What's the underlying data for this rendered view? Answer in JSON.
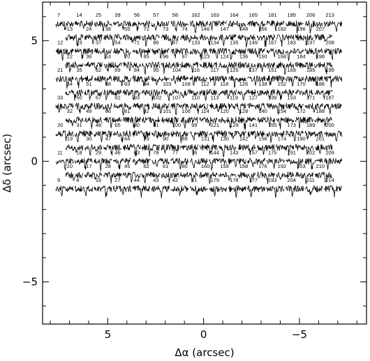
{
  "chart_data": {
    "type": "line",
    "title": "",
    "xlabel": "Δα (arcsec)",
    "ylabel": "Δδ (arcsec)",
    "xlim": [
      8.4,
      -8.5
    ],
    "ylim": [
      -6.75,
      6.6
    ],
    "x_axis_reversed": true,
    "x_ticks": [
      5,
      0,
      -5
    ],
    "x_tick_labels": [
      "5",
      "0",
      "−5"
    ],
    "y_ticks": [
      5,
      0,
      -5
    ],
    "y_tick_labels": [
      "5",
      "0",
      "−5"
    ],
    "grid": false,
    "legend": "none",
    "line_color": "#000000",
    "fiber_pitch_x_arcsec": 1.0,
    "fiber_row_step_arcsec": 0.57,
    "rows": [
      {
        "y": 5.7,
        "x_start": 7.25,
        "fibers": [
          "7",
          "14",
          "25",
          "39",
          "56",
          "57",
          "58",
          "162",
          "163",
          "164",
          "165",
          "181",
          "195",
          "206",
          "213"
        ]
      },
      {
        "y": 5.13,
        "x_start": 6.75,
        "fibers": [
          "13",
          "24",
          "38",
          "55",
          "72",
          "73",
          "74",
          "146",
          "147",
          "148",
          "166",
          "182",
          "196",
          "207"
        ]
      },
      {
        "y": 4.56,
        "x_start": 7.25,
        "fibers": [
          "12",
          "23",
          "37",
          "54",
          "71",
          "86",
          "87",
          "133",
          "134",
          "135",
          "149",
          "167",
          "183",
          "197",
          "208"
        ]
      },
      {
        "y": 3.99,
        "x_start": 6.75,
        "fibers": [
          "22",
          "36",
          "53",
          "70",
          "85",
          "96",
          "97",
          "123",
          "124",
          "136",
          "150",
          "168",
          "184",
          "198"
        ]
      },
      {
        "y": 3.42,
        "x_start": 7.25,
        "fibers": [
          "21",
          "35",
          "52",
          "69",
          "84",
          "95",
          "104",
          "116",
          "117",
          "125",
          "137",
          "151",
          "169",
          "185",
          "199"
        ]
      },
      {
        "y": 2.85,
        "x_start": 6.75,
        "fibers": [
          "34",
          "51",
          "68",
          "83",
          "94",
          "103",
          "108",
          "112",
          "118",
          "126",
          "138",
          "152",
          "170",
          "186"
        ]
      },
      {
        "y": 2.28,
        "x_start": 7.25,
        "fibers": [
          "33",
          "50",
          "67",
          "82",
          "93",
          "102",
          "107",
          "110",
          "113",
          "119",
          "127",
          "139",
          "153",
          "171",
          "187"
        ]
      },
      {
        "y": 1.71,
        "x_start": 6.75,
        "fibers": [
          "32",
          "49",
          "66",
          "81",
          "92",
          "101",
          "106",
          "114",
          "120",
          "128",
          "140",
          "154",
          "172",
          "188"
        ]
      },
      {
        "y": 1.14,
        "x_start": 7.25,
        "fibers": [
          "20",
          "31",
          "48",
          "65",
          "80",
          "91",
          "100",
          "99",
          "121",
          "129",
          "141",
          "155",
          "173",
          "189",
          "200"
        ]
      },
      {
        "y": 0.57,
        "x_start": 6.75,
        "fibers": [
          "19",
          "30",
          "47",
          "64",
          "79",
          "90",
          "89",
          "131",
          "130",
          "142",
          "156",
          "174",
          "190",
          "201"
        ]
      },
      {
        "y": 0.0,
        "x_start": 7.25,
        "fibers": [
          "11",
          "18",
          "29",
          "46",
          "63",
          "78",
          "77",
          "76",
          "144",
          "143",
          "157",
          "175",
          "191",
          "202",
          "209"
        ]
      },
      {
        "y": -0.57,
        "x_start": 6.75,
        "fibers": [
          "10",
          "17",
          "28",
          "45",
          "62",
          "61",
          "60",
          "160",
          "159",
          "158",
          "176",
          "192",
          "203",
          "210"
        ]
      },
      {
        "y": -1.14,
        "x_start": 7.25,
        "fibers": [
          "9",
          "8",
          "16",
          "27",
          "44",
          "43",
          "42",
          "41",
          "179",
          "178",
          "177",
          "193",
          "204",
          "211",
          "214"
        ]
      }
    ]
  }
}
